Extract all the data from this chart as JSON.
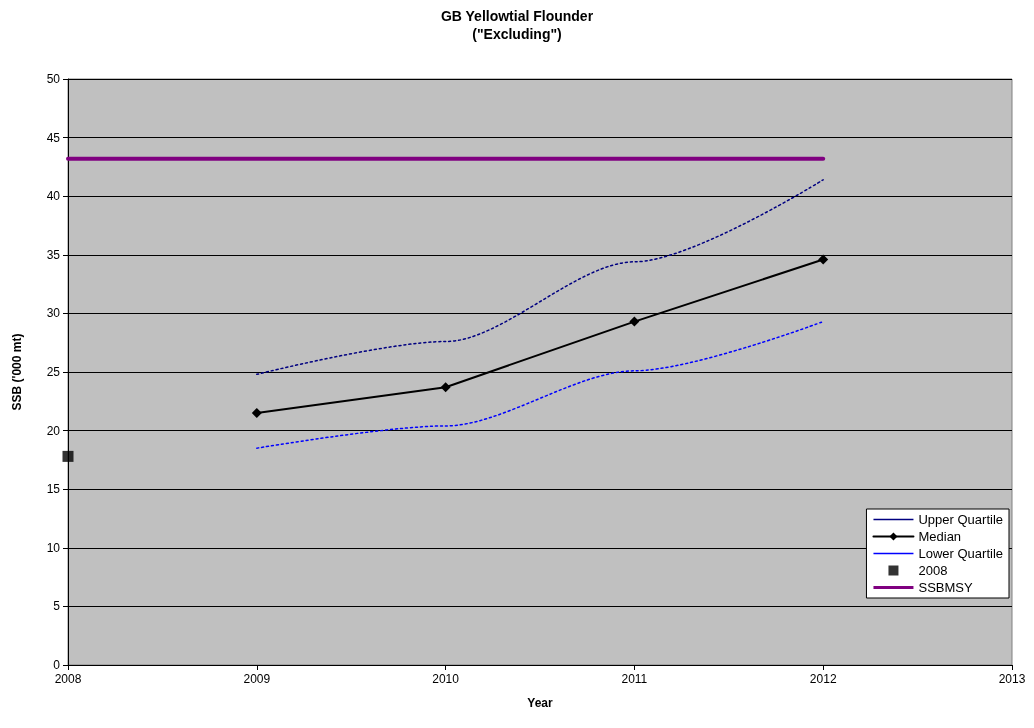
{
  "chart_data": {
    "type": "line",
    "title": "GB Yellowtial Flounder",
    "subtitle": "(\"Excluding\")",
    "xlabel": "Year",
    "ylabel": "SSB ('000 mt)",
    "xlim": [
      2008,
      2013
    ],
    "xticks": [
      2008,
      2009,
      2010,
      2011,
      2012,
      2013
    ],
    "ylim": [
      0,
      50
    ],
    "yticks": [
      0,
      5,
      10,
      15,
      20,
      25,
      30,
      35,
      40,
      45,
      50
    ],
    "grid": "y",
    "legend": "bottom right",
    "series": [
      {
        "name": "Upper Quartile",
        "color": "#000080",
        "x": [
          2009,
          2010,
          2011,
          2012
        ],
        "values": [
          24.8,
          27.6,
          34.4,
          41.4
        ],
        "line_style": "dotted",
        "marker": "none"
      },
      {
        "name": "Median",
        "color": "#000000",
        "x": [
          2009,
          2010,
          2011,
          2012
        ],
        "values": [
          21.5,
          23.7,
          29.3,
          34.6
        ],
        "line_style": "solid",
        "marker": "diamond"
      },
      {
        "name": "Lower Quartile",
        "color": "#0000ff",
        "x": [
          2009,
          2010,
          2011,
          2012
        ],
        "values": [
          18.5,
          20.4,
          25.1,
          29.3
        ],
        "line_style": "dotted",
        "marker": "none"
      },
      {
        "name": "2008",
        "type": "scatter",
        "color": "#000000",
        "x": [
          2008
        ],
        "values": [
          17.8
        ],
        "marker": "square"
      },
      {
        "name": "SSBMSY",
        "color": "#800080",
        "x": [
          2008,
          2012
        ],
        "values": [
          43.2,
          43.2
        ],
        "line_style": "solid",
        "marker": "none"
      }
    ]
  }
}
